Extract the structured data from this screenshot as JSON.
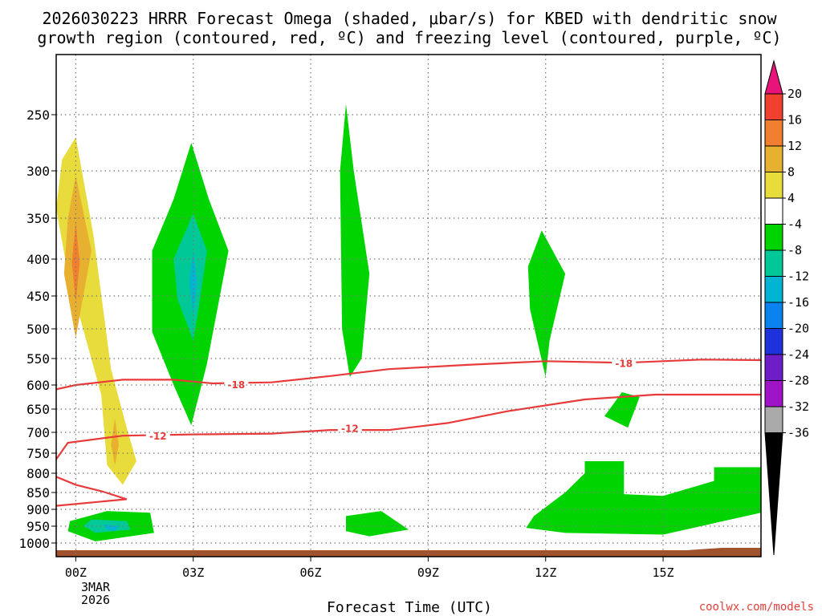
{
  "chart_data": {
    "type": "time-height contour",
    "title_line1": "2026030223 HRRR Forecast Omega (shaded, μbar/s) for KBED with dendritic snow",
    "title_line2": "growth region (contoured, red, ºC) and freezing level (contoured, purple, ºC)",
    "xlabel": "Forecast Time (UTC)",
    "ylabel": "",
    "x_range_hours": [
      -0.5,
      17.5
    ],
    "y_range_mb": [
      1025,
      200
    ],
    "x_ticks": [
      {
        "hour": 0,
        "label": "00Z"
      },
      {
        "hour": 3,
        "label": "03Z"
      },
      {
        "hour": 6,
        "label": "06Z"
      },
      {
        "hour": 9,
        "label": "09Z"
      },
      {
        "hour": 12,
        "label": "12Z"
      },
      {
        "hour": 15,
        "label": "15Z"
      }
    ],
    "date_label": [
      "3MAR",
      "2026"
    ],
    "y_ticks": [
      250,
      300,
      350,
      400,
      450,
      500,
      550,
      600,
      650,
      700,
      750,
      800,
      850,
      900,
      950,
      1000
    ],
    "colorbar": {
      "labels": [
        "20",
        "16",
        "12",
        "8",
        "4",
        "-4",
        "-8",
        "-12",
        "-16",
        "-20",
        "-24",
        "-28",
        "-32",
        "-36"
      ],
      "colors": [
        "#e8147a",
        "#f04030",
        "#f08030",
        "#e8b030",
        "#e8dc3c",
        "#ffffff",
        "#00d400",
        "#00c896",
        "#00b4d2",
        "#0a82f0",
        "#1e32dc",
        "#6e1ec8",
        "#a014c8",
        "#aaaaaa",
        "#000000"
      ]
    },
    "omega_regions": [
      {
        "level": "4",
        "color": "#e8dc3c",
        "shape": [
          [
            0,
            270
          ],
          [
            0.45,
            370
          ],
          [
            0.9,
            570
          ],
          [
            1.3,
            690
          ],
          [
            1.55,
            770
          ],
          [
            1.2,
            830
          ],
          [
            0.8,
            780
          ],
          [
            0.65,
            620
          ],
          [
            -0.2,
            420
          ],
          [
            -0.5,
            340
          ],
          [
            -0.35,
            290
          ]
        ]
      },
      {
        "level": "8",
        "color": "#e8b030",
        "shape": [
          [
            0,
            305
          ],
          [
            0.4,
            390
          ],
          [
            0,
            515
          ],
          [
            -0.3,
            420
          ],
          [
            -0.2,
            350
          ]
        ]
      },
      {
        "level": "12",
        "color": "#f08030",
        "shape": [
          [
            0,
            355
          ],
          [
            0.1,
            405
          ],
          [
            0,
            460
          ],
          [
            -0.1,
            405
          ]
        ]
      },
      {
        "level": "8",
        "color": "#e8b030",
        "shape": [
          [
            1,
            670
          ],
          [
            1.1,
            730
          ],
          [
            1,
            780
          ],
          [
            0.9,
            730
          ]
        ]
      },
      {
        "level": "-4",
        "color": "#00d400",
        "shape": [
          [
            2.95,
            275
          ],
          [
            3.4,
            330
          ],
          [
            3.9,
            390
          ],
          [
            3.35,
            560
          ],
          [
            2.95,
            685
          ],
          [
            2.5,
            600
          ],
          [
            1.95,
            505
          ],
          [
            1.95,
            390
          ],
          [
            2.5,
            330
          ]
        ]
      },
      {
        "level": "-8",
        "color": "#00c896",
        "shape": [
          [
            3,
            345
          ],
          [
            3.35,
            390
          ],
          [
            3.15,
            465
          ],
          [
            3,
            520
          ],
          [
            2.6,
            455
          ],
          [
            2.5,
            400
          ]
        ]
      },
      {
        "level": "-12",
        "color": "#00b4d2",
        "shape": [
          [
            3,
            390
          ],
          [
            3.1,
            430
          ],
          [
            3,
            480
          ],
          [
            2.9,
            430
          ]
        ]
      },
      {
        "level": "-4",
        "color": "#00d400",
        "shape": [
          [
            6.9,
            240
          ],
          [
            7.1,
            300
          ],
          [
            7.5,
            420
          ],
          [
            7.3,
            550
          ],
          [
            7,
            585
          ],
          [
            6.8,
            500
          ],
          [
            6.75,
            300
          ]
        ]
      },
      {
        "level": "-4",
        "color": "#00d400",
        "shape": [
          [
            11.9,
            365
          ],
          [
            12.5,
            420
          ],
          [
            12.1,
            520
          ],
          [
            12,
            585
          ],
          [
            11.6,
            470
          ],
          [
            11.55,
            410
          ]
        ]
      },
      {
        "level": "-4",
        "color": "#00d400",
        "shape": [
          [
            13.5,
            665
          ],
          [
            14.1,
            690
          ],
          [
            14.4,
            625
          ],
          [
            13.95,
            615
          ],
          [
            13.55,
            660
          ]
        ]
      },
      {
        "level": "-4",
        "color": "#00d400",
        "shape": [
          [
            11.5,
            955
          ],
          [
            12.5,
            970
          ],
          [
            15,
            975
          ],
          [
            17.5,
            910
          ],
          [
            17.5,
            785
          ],
          [
            16.3,
            785
          ],
          [
            16.3,
            820
          ],
          [
            15,
            860
          ],
          [
            14,
            855
          ],
          [
            14,
            770
          ],
          [
            13,
            770
          ],
          [
            13,
            800
          ],
          [
            12.5,
            850
          ],
          [
            11.7,
            920
          ]
        ]
      },
      {
        "level": "-4",
        "color": "#00d400",
        "shape": [
          [
            -0.2,
            965
          ],
          [
            0.5,
            995
          ],
          [
            2,
            970
          ],
          [
            1.9,
            910
          ],
          [
            0.8,
            905
          ],
          [
            -0.15,
            935
          ]
        ]
      },
      {
        "level": "-8",
        "color": "#00c896",
        "shape": [
          [
            0.4,
            930
          ],
          [
            1.3,
            935
          ],
          [
            1.4,
            960
          ],
          [
            0.5,
            970
          ],
          [
            0.2,
            950
          ]
        ]
      },
      {
        "level": "-12",
        "color": "#00b4d2",
        "shape": [
          [
            0.7,
            945
          ],
          [
            1.1,
            950
          ],
          [
            1,
            965
          ],
          [
            0.8,
            960
          ]
        ]
      },
      {
        "level": "-4",
        "color": "#00d400",
        "shape": [
          [
            6.9,
            920
          ],
          [
            7.8,
            905
          ],
          [
            8.5,
            960
          ],
          [
            7.5,
            980
          ],
          [
            6.9,
            965
          ]
        ]
      }
    ],
    "contours": [
      {
        "value": "-18",
        "color": "#e83a3a",
        "label_points": [
          [
            4.1,
            600
          ],
          [
            14,
            560
          ]
        ],
        "points": [
          [
            -1,
            618
          ],
          [
            0,
            600
          ],
          [
            1.2,
            590
          ],
          [
            2.5,
            590
          ],
          [
            3.5,
            597
          ],
          [
            5,
            595
          ],
          [
            6.5,
            583
          ],
          [
            8,
            570
          ],
          [
            10,
            562
          ],
          [
            12,
            555
          ],
          [
            14,
            558
          ],
          [
            16,
            552
          ],
          [
            17.5,
            553
          ]
        ]
      },
      {
        "value": "-12",
        "color": "#e83a3a",
        "label_points": [
          [
            2.1,
            710
          ],
          [
            7,
            692
          ]
        ],
        "points": [
          [
            17.5,
            620
          ],
          [
            14.8,
            620
          ],
          [
            13,
            630
          ],
          [
            11,
            655
          ],
          [
            9.5,
            680
          ],
          [
            8,
            695
          ],
          [
            6.5,
            695
          ],
          [
            5,
            703
          ],
          [
            3,
            705
          ],
          [
            1.2,
            708
          ],
          [
            -0.2,
            725
          ],
          [
            -0.5,
            765
          ],
          [
            -0.6,
            805
          ],
          [
            0,
            830
          ],
          [
            0.7,
            848
          ],
          [
            1.3,
            870
          ],
          [
            -1,
            895
          ]
        ]
      }
    ],
    "freezing_level": []
  },
  "credit": "coolwx.com/models"
}
